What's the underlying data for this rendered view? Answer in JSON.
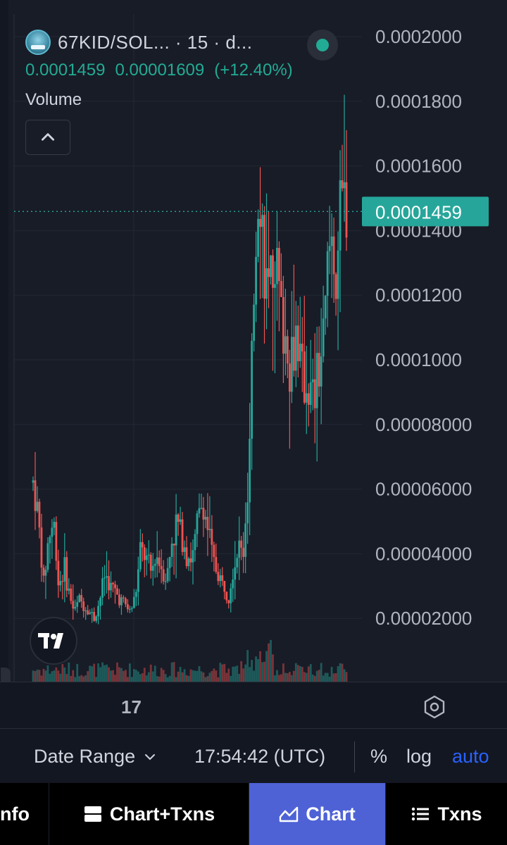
{
  "legend": {
    "symbol": "67KID/SOL... · 15 · d...",
    "last_price": "0.0001459",
    "change_abs": "0.00001609",
    "change_pct": "(+12.40%)",
    "volume_label": "Volume",
    "icons": {
      "avatar": "token-avatar",
      "status": "market-status-dot",
      "collapse": "chevron-up-icon"
    }
  },
  "chart_data": {
    "type": "candlestick",
    "pair": "67KID/SOL",
    "interval": "15",
    "y_axis_ticks": [
      "0.0002000",
      "0.0001800",
      "0.0001600",
      "0.0001400",
      "0.0001200",
      "0.0001000",
      "0.00008000",
      "0.00006000",
      "0.00004000",
      "0.00002000"
    ],
    "y_values": [
      0.0002,
      0.00018,
      0.00016,
      0.00014,
      0.00012,
      0.0001,
      8e-05,
      6e-05,
      4e-05,
      2e-05
    ],
    "ylim": [
      0.0,
      0.000205
    ],
    "x_axis_ticks": [
      "17"
    ],
    "current_price": 0.0001459,
    "current_price_label": "0.0001459",
    "colors": {
      "up": "#26a69a",
      "down": "#ef5350",
      "price_line": "#26a69a",
      "background": "#181c27",
      "grid": "#232733"
    },
    "price_path": [
      6.2e-05,
      5.2e-05,
      3e-05,
      4.5e-05,
      5e-05,
      3e-05,
      3.6e-05,
      2.8e-05,
      2.2e-05,
      2.6e-05,
      2.4e-05,
      2.2e-05,
      2e-05,
      2.6e-05,
      3.4e-05,
      3e-05,
      2.8e-05,
      2.6e-05,
      2.4e-05,
      2.2e-05,
      2.8e-05,
      4.2e-05,
      3.8e-05,
      3.4e-05,
      4e-05,
      3.6e-05,
      3.2e-05,
      4.4e-05,
      5e-05,
      4.6e-05,
      4e-05,
      3.8e-05,
      5e-05,
      5.6e-05,
      4.8e-05,
      3.8e-05,
      3.4e-05,
      3e-05,
      2.8e-05,
      3.6e-05,
      4.2e-05,
      4e-05,
      6e-05,
      0.00012,
      0.00016,
      0.00013,
      0.000112,
      0.00014,
      0.000118,
      0.000108,
      0.0001,
      0.000112,
      9.8e-05,
      9.4e-05,
      8.8e-05,
      9e-05,
      0.0001,
      0.000118,
      0.00014,
      0.000128,
      0.00015,
      0.000146
    ]
  },
  "toolbar": {
    "date_range": "Date Range",
    "clock": "17:54:42 (UTC)",
    "percent": "%",
    "log": "log",
    "auto": "auto"
  },
  "nav": {
    "tabs": [
      "nfo",
      "Chart+Txns",
      "Chart",
      "Txns"
    ],
    "active": "Chart"
  }
}
